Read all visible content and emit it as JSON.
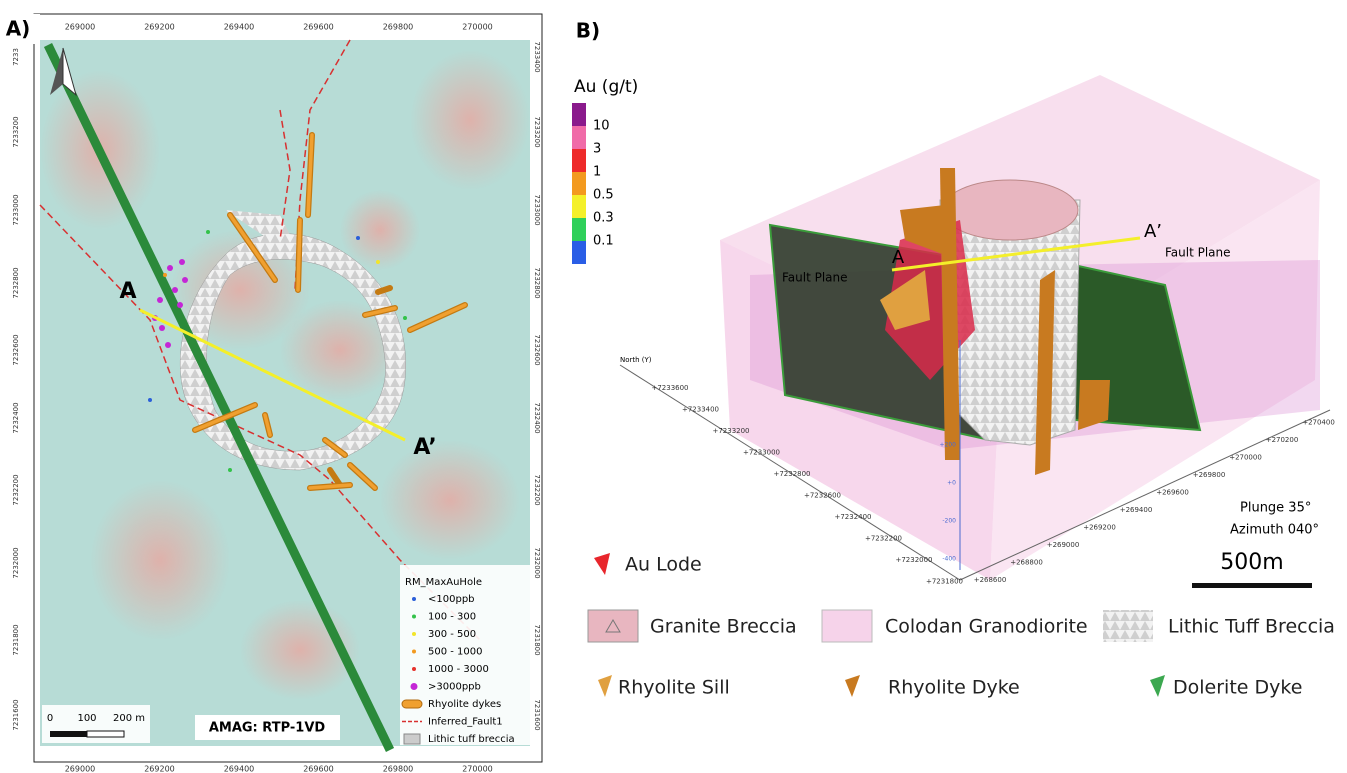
{
  "panel_a": {
    "label": "A)",
    "x_ticks": [
      269000,
      269200,
      269400,
      269600,
      269800,
      270000
    ],
    "y_ticks_left": [
      7233,
      7233200,
      7233000,
      7232800,
      7232600,
      7232400,
      7232200,
      7232000,
      7231800,
      7231600
    ],
    "y_ticks_right": [
      7233400,
      7233200,
      7233000,
      7232800,
      7232600,
      7232400,
      7232200,
      7232000,
      7231800,
      7231600
    ],
    "section_start": "A",
    "section_end": "A’",
    "legend": {
      "title": "RM_MaxAuHole",
      "items": [
        {
          "label": "<100ppb",
          "color": "#2b5fd9",
          "symbol": "dot"
        },
        {
          "label": "100 - 300",
          "color": "#33c24a",
          "symbol": "dot"
        },
        {
          "label": "300 - 500",
          "color": "#f2e52a",
          "symbol": "dot"
        },
        {
          "label": "500 - 1000",
          "color": "#f29a1f",
          "symbol": "dot"
        },
        {
          "label": "1000 - 3000",
          "color": "#e6322c",
          "symbol": "dot"
        },
        {
          "label": ">3000ppb",
          "color": "#c426d6",
          "symbol": "big-dot"
        },
        {
          "label": "Rhyolite dykes",
          "color": "#f0a030",
          "symbol": "dyke"
        },
        {
          "label": "Inferred_Fault1",
          "color": "#d83030",
          "symbol": "dashed"
        },
        {
          "label": "Lithic tuff breccia",
          "color": "#cccccc",
          "symbol": "box"
        }
      ]
    },
    "scale_bar": [
      "0",
      "100",
      "200 m"
    ],
    "layer_label": "AMAG: RTP-1VD"
  },
  "panel_b": {
    "label": "B)",
    "color_scale": {
      "title": "Au (g/t)",
      "steps": [
        {
          "label": "10",
          "color": "#8a1a8c"
        },
        {
          "label": "3",
          "color": "#f06ba8"
        },
        {
          "label": "1",
          "color": "#ee2a2a"
        },
        {
          "label": "0.5",
          "color": "#f39a1f"
        },
        {
          "label": "0.3",
          "color": "#f4f02a"
        },
        {
          "label": "0.1",
          "color": "#2fd05a"
        },
        {
          "label": "",
          "color": "#2a5ee6"
        }
      ]
    },
    "section_start": "A",
    "section_end": "A’",
    "fault_labels": [
      "Fault Plane",
      "Fault Plane"
    ],
    "north_axis": {
      "title": "North (Y)",
      "ticks": [
        "+7233600",
        "+7233400",
        "+7233200",
        "+7233000",
        "+7232800",
        "+7232600",
        "+7232400",
        "+7232200",
        "+7232000",
        "+7231800"
      ]
    },
    "east_ticks": [
      "+268600",
      "+268800",
      "+269000",
      "+269200",
      "+269400",
      "+269600",
      "+269800",
      "+270000",
      "+270200",
      "+270400"
    ],
    "elev_ticks": [
      "+200",
      "+0",
      "-200",
      "-400"
    ],
    "view": [
      "Plunge 35°",
      "Azimuth 040°"
    ],
    "scale_bar": "500m",
    "legend": [
      "Au Lode",
      "Granite Breccia",
      "Colodan Granodiorite",
      "Lithic Tuff Breccia",
      "Rhyolite Sill",
      "Rhyolite Dyke",
      "Dolerite Dyke"
    ]
  }
}
